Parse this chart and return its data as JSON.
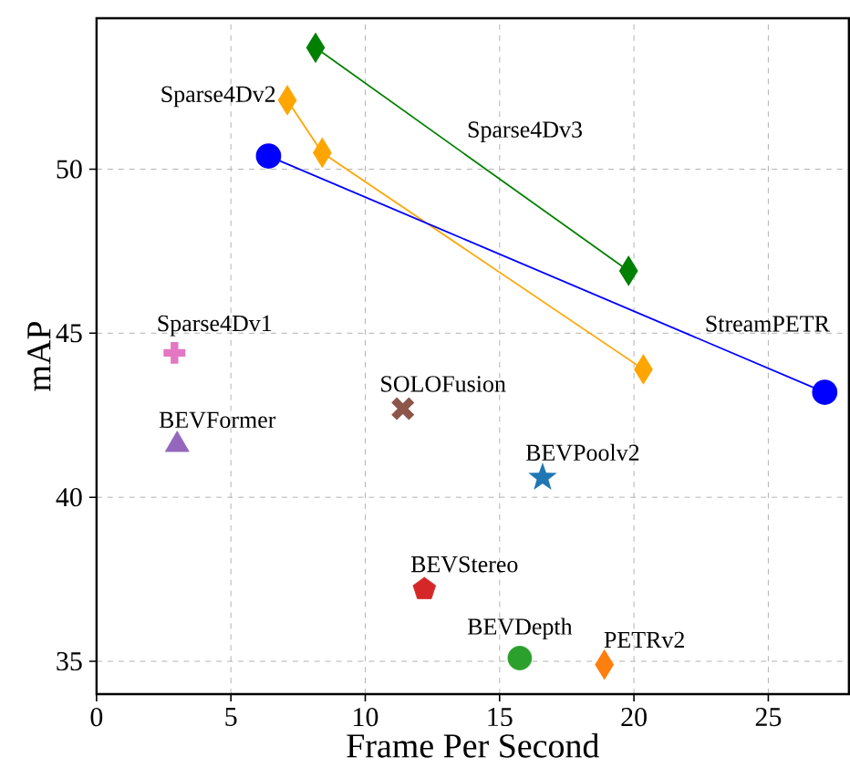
{
  "chart_data": {
    "type": "scatter",
    "xlabel": "Frame Per Second",
    "ylabel": "mAP",
    "xlim": [
      0,
      28
    ],
    "ylim": [
      34,
      54.6
    ],
    "xticks": [
      0,
      5,
      10,
      15,
      20,
      25
    ],
    "yticks": [
      35,
      40,
      45,
      50
    ],
    "grid": true,
    "legend": false,
    "series": [
      {
        "name": "Sparse4Dv3",
        "type": "line",
        "color": "#008000",
        "marker": "diamond",
        "x": [
          8.15,
          19.8
        ],
        "values": [
          53.7,
          46.9
        ]
      },
      {
        "name": "Sparse4Dv2",
        "type": "line",
        "color": "#ffa500",
        "marker": "diamond",
        "x": [
          7.1,
          8.4,
          20.35
        ],
        "values": [
          52.1,
          50.5,
          43.9
        ]
      },
      {
        "name": "StreamPETR",
        "type": "line",
        "color": "#0000ff",
        "marker": "circle",
        "x": [
          6.4,
          27.1
        ],
        "values": [
          50.4,
          43.2
        ]
      },
      {
        "name": "Sparse4Dv1",
        "color": "#e377c2",
        "marker": "plus",
        "x": [
          2.9
        ],
        "values": [
          44.4
        ]
      },
      {
        "name": "BEVFormer",
        "color": "#9467bd",
        "marker": "triangle",
        "x": [
          3.0
        ],
        "values": [
          41.6
        ]
      },
      {
        "name": "SOLOFusion",
        "color": "#8c564b",
        "marker": "cross",
        "x": [
          11.4
        ],
        "values": [
          42.7
        ]
      },
      {
        "name": "BEVPoolv2",
        "color": "#1f77b4",
        "marker": "star",
        "x": [
          16.6
        ],
        "values": [
          40.6
        ]
      },
      {
        "name": "BEVStereo",
        "color": "#d62728",
        "x": [
          12.2
        ],
        "values": [
          37.2
        ]
      },
      {
        "name": "BEVDepth",
        "color": "#2ca02c",
        "marker": "circle",
        "x": [
          15.75
        ],
        "values": [
          35.1
        ]
      },
      {
        "name": "PETRv2",
        "color": "#ff7f0e",
        "marker": "diamond",
        "x": [
          18.9
        ],
        "values": [
          34.9
        ]
      }
    ]
  }
}
